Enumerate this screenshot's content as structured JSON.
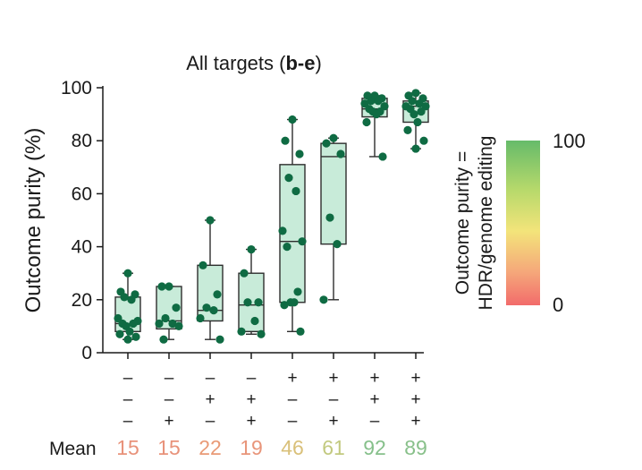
{
  "chart_data": {
    "type": "box",
    "title_prefix": "All targets (",
    "title_bold": "b-e",
    "title_suffix": ")",
    "ylabel": "Outcome purity (%)",
    "ylim": [
      0,
      100
    ],
    "yticks": [
      0,
      20,
      40,
      60,
      80,
      100
    ],
    "categories": [
      "1",
      "2",
      "3",
      "4",
      "5",
      "6",
      "7",
      "8"
    ],
    "conditions": [
      [
        "–",
        "–",
        "–",
        "–",
        "+",
        "+",
        "+",
        "+"
      ],
      [
        "–",
        "–",
        "+",
        "+",
        "–",
        "–",
        "+",
        "+"
      ],
      [
        "–",
        "+",
        "–",
        "+",
        "–",
        "+",
        "–",
        "+"
      ]
    ],
    "mean_label": "Mean",
    "means": [
      15,
      15,
      22,
      19,
      46,
      61,
      92,
      89
    ],
    "mean_colors": [
      "#e8927a",
      "#e8927a",
      "#e99a76",
      "#e8957a",
      "#d9c07a",
      "#c2c97f",
      "#86c08b",
      "#88c08a"
    ],
    "boxes": [
      {
        "whisker_low": 5,
        "q1": 8,
        "median": 11,
        "q3": 21,
        "whisker_high": 30,
        "points": [
          30,
          23,
          22,
          21,
          20,
          13,
          12,
          11,
          11,
          10,
          8,
          7,
          6,
          5
        ]
      },
      {
        "whisker_low": 5,
        "q1": 9,
        "median": 12,
        "q3": 25,
        "whisker_high": 25,
        "points": [
          25,
          25,
          17,
          13,
          11,
          11,
          10,
          5
        ]
      },
      {
        "whisker_low": 5,
        "q1": 12,
        "median": 16,
        "q3": 33,
        "whisker_high": 50,
        "points": [
          50,
          33,
          22,
          17,
          16,
          13,
          5
        ]
      },
      {
        "whisker_low": 7,
        "q1": 8,
        "median": 18,
        "q3": 30,
        "whisker_high": 39,
        "points": [
          39,
          30,
          19,
          19,
          12,
          8,
          7
        ]
      },
      {
        "whisker_low": 8,
        "q1": 19,
        "median": 42,
        "q3": 71,
        "whisker_high": 88,
        "points": [
          88,
          80,
          75,
          66,
          61,
          46,
          42,
          40,
          23,
          19,
          19,
          18,
          8
        ]
      },
      {
        "whisker_low": 20,
        "q1": 41,
        "median": 74,
        "q3": 79,
        "whisker_high": 81,
        "points": [
          81,
          79,
          75,
          51,
          41,
          20
        ]
      },
      {
        "whisker_low": 74,
        "q1": 89,
        "median": 92,
        "q3": 96,
        "whisker_high": 97,
        "points": [
          97,
          97,
          96,
          95,
          95,
          94,
          93,
          92,
          91,
          91,
          90,
          87,
          74
        ]
      },
      {
        "whisker_low": 77,
        "q1": 87,
        "median": 93,
        "q3": 95,
        "whisker_high": 98,
        "points": [
          98,
          97,
          96,
          95,
          94,
          93,
          93,
          92,
          91,
          90,
          87,
          84,
          80,
          77
        ]
      }
    ],
    "colorbar": {
      "label_line1": "Outcome purity =",
      "label_line2": "HDR/genome editing",
      "max_label": "100",
      "min_label": "0",
      "max_color": "#7dc08b",
      "min_color": "#e8776a"
    },
    "colors": {
      "box_fill": "#c8ebd9",
      "box_stroke": "#2d2d2d",
      "point": "#0f6b43",
      "axis": "#1a1a1a"
    }
  }
}
